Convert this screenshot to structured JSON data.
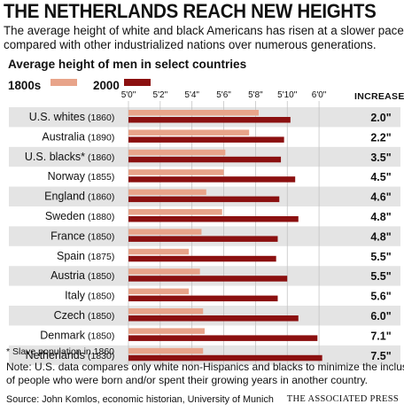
{
  "title": "THE NETHERLANDS REACH NEW HEIGHTS",
  "subtitle_lines": [
    "The average height of white and black Americans has risen at a slower pace",
    "compared with other industrialized nations over numerous generations."
  ],
  "chart_heading": "Average height of men in select countries",
  "legend": {
    "a": "1800s",
    "b": "2000"
  },
  "increase_header": "INCREASE",
  "colors": {
    "s1800": "#e8a48a",
    "s2000": "#8b1010",
    "row_shade": "#e4e4e4"
  },
  "chart_data": {
    "type": "bar",
    "orientation": "horizontal",
    "unit": "inches",
    "xlim": [
      60,
      73
    ],
    "ticks": [
      {
        "value": 60,
        "label": "5'0\""
      },
      {
        "value": 62,
        "label": "5'2\""
      },
      {
        "value": 64,
        "label": "5'4\""
      },
      {
        "value": 66,
        "label": "5'6\""
      },
      {
        "value": 68,
        "label": "5'8\""
      },
      {
        "value": 70,
        "label": "5'10\""
      },
      {
        "value": 72,
        "label": "6'0\""
      }
    ],
    "categories": [
      {
        "name": "U.S. whites",
        "year": "(1860)",
        "v1800": 68.2,
        "v2000": 70.2,
        "increase": "2.0\""
      },
      {
        "name": "Australia",
        "year": "(1890)",
        "v1800": 67.6,
        "v2000": 69.8,
        "increase": "2.2\""
      },
      {
        "name": "U.S. blacks*",
        "year": "(1860)",
        "v1800": 66.1,
        "v2000": 69.6,
        "increase": "3.5\""
      },
      {
        "name": "Norway",
        "year": "(1855)",
        "v1800": 66.0,
        "v2000": 70.5,
        "increase": "4.5\""
      },
      {
        "name": "England",
        "year": "(1860)",
        "v1800": 64.9,
        "v2000": 69.5,
        "increase": "4.6\""
      },
      {
        "name": "Sweden",
        "year": "(1880)",
        "v1800": 65.9,
        "v2000": 70.7,
        "increase": "4.8\""
      },
      {
        "name": "France",
        "year": "(1850)",
        "v1800": 64.6,
        "v2000": 69.4,
        "increase": "4.8\""
      },
      {
        "name": "Spain",
        "year": "(1875)",
        "v1800": 63.8,
        "v2000": 69.3,
        "increase": "5.5\""
      },
      {
        "name": "Austria",
        "year": "(1850)",
        "v1800": 64.5,
        "v2000": 70.0,
        "increase": "5.5\""
      },
      {
        "name": "Italy",
        "year": "(1850)",
        "v1800": 63.8,
        "v2000": 69.4,
        "increase": "5.6\""
      },
      {
        "name": "Czech",
        "year": "(1850)",
        "v1800": 64.7,
        "v2000": 70.7,
        "increase": "6.0\""
      },
      {
        "name": "Denmark",
        "year": "(1850)",
        "v1800": 64.8,
        "v2000": 71.9,
        "increase": "7.1\""
      },
      {
        "name": "Netherlands",
        "year": "(1830)",
        "v1800": 64.7,
        "v2000": 72.2,
        "increase": "7.5\""
      }
    ]
  },
  "footnote": "* Slave population in 1860",
  "note_lines": [
    "Note: U.S. data compares only white non-Hispanics and blacks to minimize the inclusion",
    "of people who were born and/or spent their growing years in another country."
  ],
  "source": "Source: John Komlos, economic historian, University of Munich",
  "credit": "THE ASSOCIATED PRESS"
}
